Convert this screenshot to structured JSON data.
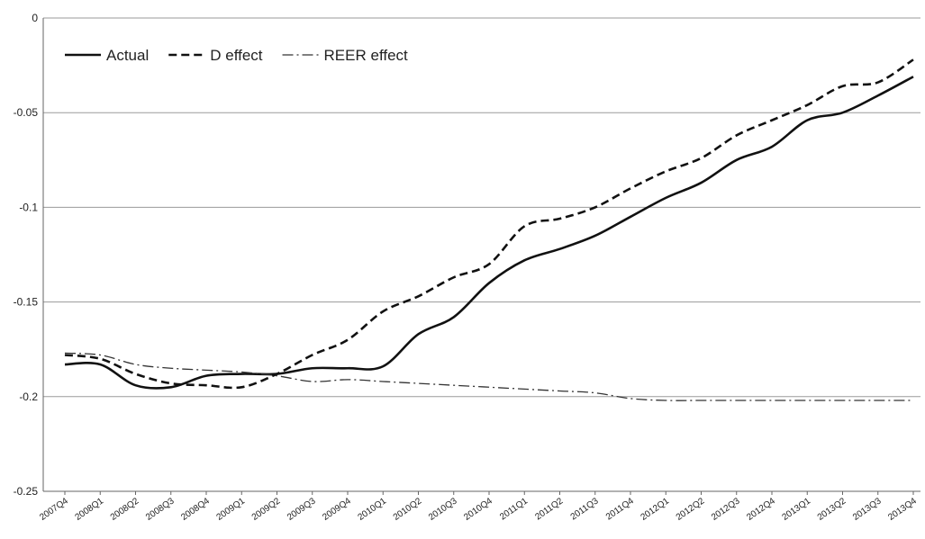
{
  "chart_data": {
    "type": "line",
    "title": "",
    "xlabel": "",
    "ylabel": "",
    "ylim": [
      -0.25,
      0
    ],
    "yticks": [
      0,
      -0.05,
      -0.1,
      -0.15,
      -0.2,
      -0.25
    ],
    "ytick_labels": [
      "0",
      "-0.05",
      "-0.1",
      "-0.15",
      "-0.2",
      "-0.25"
    ],
    "grid": "horizontal",
    "legend_position": "top-left",
    "categories": [
      "2007Q4",
      "2008Q1",
      "2008Q2",
      "2008Q3",
      "2008Q4",
      "2009Q1",
      "2009Q2",
      "2009Q3",
      "2009Q4",
      "2010Q1",
      "2010Q2",
      "2010Q3",
      "2010Q4",
      "2011Q1",
      "2011Q2",
      "2011Q3",
      "2011Q4",
      "2012Q1",
      "2012Q2",
      "2012Q3",
      "2012Q4",
      "2013Q1",
      "2013Q2",
      "2013Q3",
      "2013Q4"
    ],
    "series": [
      {
        "name": "Actual",
        "style": "solid",
        "color": "#111111",
        "values": [
          -0.183,
          -0.183,
          -0.194,
          -0.195,
          -0.189,
          -0.188,
          -0.188,
          -0.185,
          -0.185,
          -0.184,
          -0.167,
          -0.158,
          -0.14,
          -0.128,
          -0.122,
          -0.115,
          -0.105,
          -0.095,
          -0.087,
          -0.075,
          -0.068,
          -0.054,
          -0.05,
          -0.041,
          -0.031
        ]
      },
      {
        "name": "D effect",
        "style": "dashed",
        "color": "#111111",
        "values": [
          -0.178,
          -0.18,
          -0.188,
          -0.193,
          -0.194,
          -0.195,
          -0.188,
          -0.178,
          -0.17,
          -0.155,
          -0.147,
          -0.137,
          -0.13,
          -0.11,
          -0.106,
          -0.1,
          -0.09,
          -0.081,
          -0.074,
          -0.062,
          -0.054,
          -0.046,
          -0.036,
          -0.034,
          -0.022
        ]
      },
      {
        "name": "REER effect",
        "style": "dashdot",
        "color": "#333333",
        "values": [
          -0.177,
          -0.178,
          -0.183,
          -0.185,
          -0.186,
          -0.187,
          -0.189,
          -0.192,
          -0.191,
          -0.192,
          -0.193,
          -0.194,
          -0.195,
          -0.196,
          -0.197,
          -0.198,
          -0.201,
          -0.202,
          -0.202,
          -0.202,
          -0.202,
          -0.202,
          -0.202,
          -0.202,
          -0.202
        ]
      }
    ]
  }
}
